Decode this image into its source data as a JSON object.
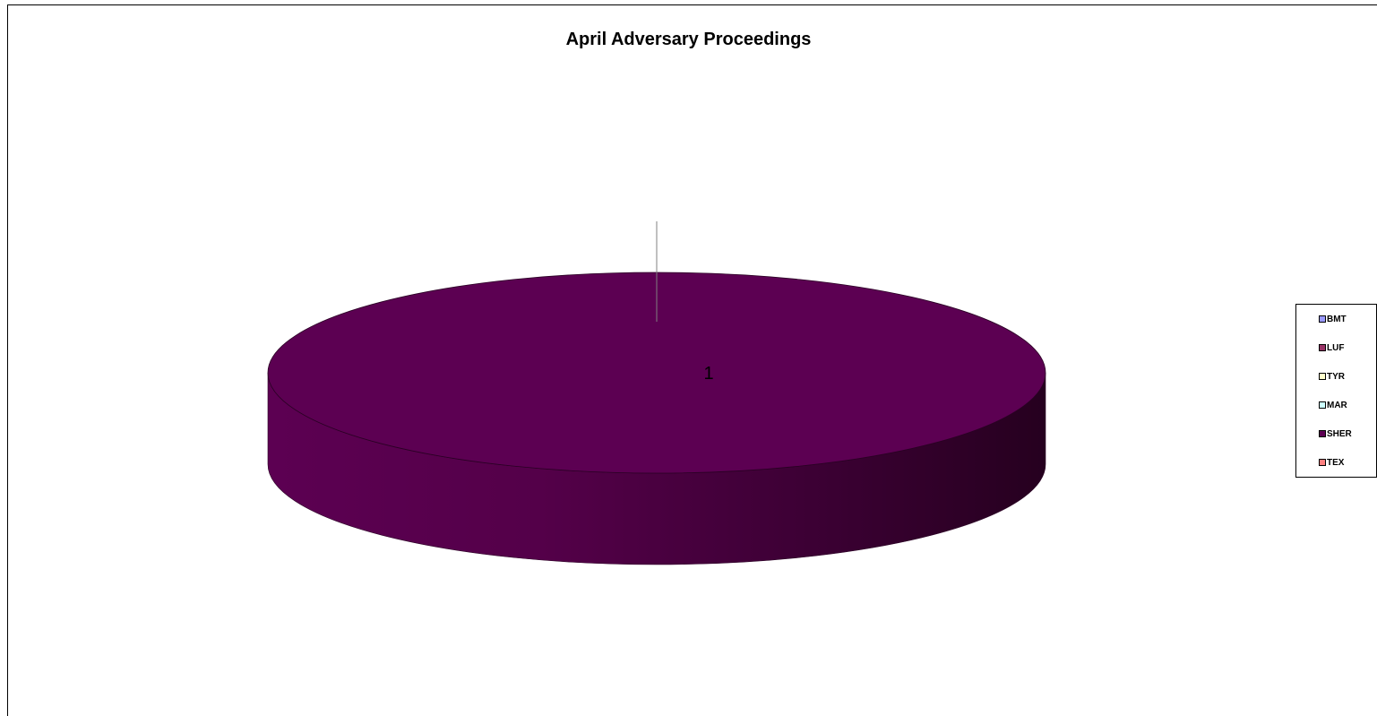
{
  "chart_data": {
    "type": "pie",
    "title": "April Adversary Proceedings",
    "three_d": true,
    "categories": [
      "BMT",
      "LUF",
      "TYR",
      "MAR",
      "SHER",
      "TEX"
    ],
    "values": [
      0,
      0,
      0,
      0,
      1,
      0
    ],
    "colors": [
      "#9999ff",
      "#993366",
      "#ffffcc",
      "#ccffff",
      "#5c0052",
      "#ff8080"
    ],
    "data_labels": [
      "",
      "",
      "",
      "",
      "1",
      ""
    ],
    "legend": {
      "position": "right",
      "entries": [
        "BMT",
        "LUF",
        "TYR",
        "MAR",
        "SHER",
        "TEX"
      ]
    }
  }
}
